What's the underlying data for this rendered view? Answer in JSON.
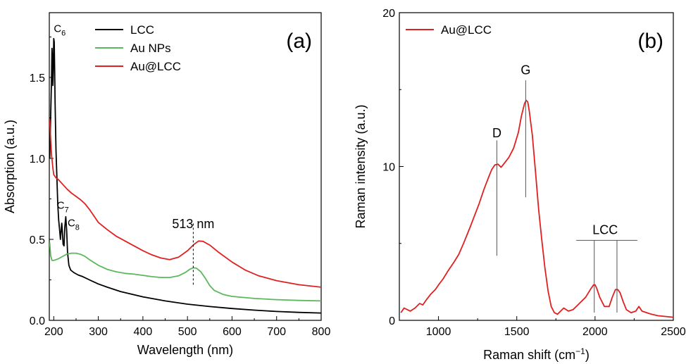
{
  "chart_data": [
    {
      "type": "line",
      "panel_label": "(a)",
      "xlabel": "Wavelength (nm)",
      "ylabel": "Absorption (a.u.)",
      "xlim": [
        190,
        800
      ],
      "ylim": [
        0.0,
        1.9
      ],
      "xticks": [
        200,
        300,
        400,
        500,
        600,
        700,
        800
      ],
      "yticks": [
        0.0,
        0.5,
        1.0,
        1.5
      ],
      "xtick_labels": [
        "200",
        "300",
        "400",
        "500",
        "600",
        "700",
        "800"
      ],
      "ytick_labels": [
        "0.0",
        "0.5",
        "1.0",
        "1.5"
      ],
      "legend_position": "top-center",
      "series": [
        {
          "name": "LCC",
          "color": "#000000",
          "points": [
            [
              191,
              1.0
            ],
            [
              193,
              1.25
            ],
            [
              195,
              1.5
            ],
            [
              196,
              1.68
            ],
            [
              197,
              1.62
            ],
            [
              198,
              1.45
            ],
            [
              199,
              1.55
            ],
            [
              200,
              1.74
            ],
            [
              201,
              1.72
            ],
            [
              202,
              1.55
            ],
            [
              203,
              1.35
            ],
            [
              205,
              1.05
            ],
            [
              207,
              0.88
            ],
            [
              209,
              0.72
            ],
            [
              211,
              0.62
            ],
            [
              213,
              0.56
            ],
            [
              215,
              0.5
            ],
            [
              217,
              0.57
            ],
            [
              218,
              0.6
            ],
            [
              219,
              0.56
            ],
            [
              221,
              0.47
            ],
            [
              223,
              0.46
            ],
            [
              225,
              0.58
            ],
            [
              227,
              0.64
            ],
            [
              229,
              0.55
            ],
            [
              231,
              0.42
            ],
            [
              234,
              0.34
            ],
            [
              238,
              0.31
            ],
            [
              245,
              0.295
            ],
            [
              255,
              0.28
            ],
            [
              265,
              0.27
            ],
            [
              280,
              0.25
            ],
            [
              300,
              0.225
            ],
            [
              320,
              0.205
            ],
            [
              350,
              0.178
            ],
            [
              400,
              0.145
            ],
            [
              450,
              0.12
            ],
            [
              500,
              0.1
            ],
            [
              550,
              0.085
            ],
            [
              600,
              0.073
            ],
            [
              650,
              0.063
            ],
            [
              700,
              0.055
            ],
            [
              750,
              0.049
            ],
            [
              800,
              0.045
            ]
          ]
        },
        {
          "name": "Au NPs",
          "color": "#5cb85c",
          "points": [
            [
              191,
              0.48
            ],
            [
              193,
              0.4
            ],
            [
              196,
              0.37
            ],
            [
              200,
              0.37
            ],
            [
              205,
              0.375
            ],
            [
              210,
              0.38
            ],
            [
              220,
              0.395
            ],
            [
              230,
              0.41
            ],
            [
              240,
              0.415
            ],
            [
              250,
              0.415
            ],
            [
              260,
              0.408
            ],
            [
              270,
              0.395
            ],
            [
              280,
              0.375
            ],
            [
              300,
              0.34
            ],
            [
              320,
              0.315
            ],
            [
              340,
              0.3
            ],
            [
              360,
              0.29
            ],
            [
              380,
              0.285
            ],
            [
              400,
              0.278
            ],
            [
              420,
              0.27
            ],
            [
              440,
              0.265
            ],
            [
              460,
              0.265
            ],
            [
              480,
              0.275
            ],
            [
              495,
              0.295
            ],
            [
              505,
              0.315
            ],
            [
              513,
              0.325
            ],
            [
              520,
              0.322
            ],
            [
              530,
              0.3
            ],
            [
              540,
              0.26
            ],
            [
              550,
              0.215
            ],
            [
              560,
              0.185
            ],
            [
              580,
              0.16
            ],
            [
              600,
              0.148
            ],
            [
              650,
              0.135
            ],
            [
              700,
              0.128
            ],
            [
              750,
              0.123
            ],
            [
              800,
              0.12
            ]
          ]
        },
        {
          "name": "Au@LCC",
          "color": "#e02020",
          "points": [
            [
              191,
              1.24
            ],
            [
              193,
              1.12
            ],
            [
              195,
              1.02
            ],
            [
              198,
              0.94
            ],
            [
              200,
              0.9
            ],
            [
              205,
              0.88
            ],
            [
              210,
              0.87
            ],
            [
              220,
              0.84
            ],
            [
              230,
              0.81
            ],
            [
              240,
              0.785
            ],
            [
              250,
              0.765
            ],
            [
              260,
              0.745
            ],
            [
              270,
              0.72
            ],
            [
              280,
              0.685
            ],
            [
              290,
              0.645
            ],
            [
              300,
              0.605
            ],
            [
              320,
              0.56
            ],
            [
              340,
              0.52
            ],
            [
              360,
              0.49
            ],
            [
              380,
              0.46
            ],
            [
              400,
              0.43
            ],
            [
              420,
              0.405
            ],
            [
              440,
              0.385
            ],
            [
              460,
              0.375
            ],
            [
              480,
              0.39
            ],
            [
              500,
              0.43
            ],
            [
              515,
              0.47
            ],
            [
              525,
              0.49
            ],
            [
              535,
              0.488
            ],
            [
              550,
              0.465
            ],
            [
              570,
              0.42
            ],
            [
              600,
              0.36
            ],
            [
              630,
              0.31
            ],
            [
              660,
              0.275
            ],
            [
              700,
              0.245
            ],
            [
              750,
              0.22
            ],
            [
              800,
              0.205
            ]
          ]
        }
      ],
      "annotations": [
        {
          "text": "C",
          "sub": "6",
          "x": 200,
          "y": 1.78
        },
        {
          "text": "C",
          "sub": "7",
          "x": 207,
          "y": 0.69
        },
        {
          "text": "C",
          "sub": "8",
          "x": 231,
          "y": 0.58
        },
        {
          "text": "513 nm",
          "x": 513,
          "y": 0.57
        }
      ],
      "marker_line": {
        "x": 513,
        "y_from": 0.22,
        "y_to": 0.6
      }
    },
    {
      "type": "line",
      "panel_label": "(b)",
      "xlabel": "Raman shift (cm",
      "xlabel_sup": "−1",
      "xlabel_close": ")",
      "ylabel": "Raman intensity (a.u.)",
      "xlim": [
        750,
        2500
      ],
      "ylim": [
        0,
        20
      ],
      "xticks": [
        1000,
        1500,
        2000,
        2500
      ],
      "yticks": [
        0,
        10,
        20
      ],
      "xtick_labels": [
        "1000",
        "1500",
        "2000",
        "2500"
      ],
      "ytick_labels": [
        "0",
        "10",
        "20"
      ],
      "legend_position": "top-left",
      "series": [
        {
          "name": "Au@LCC",
          "color": "#e02020",
          "points": [
            [
              760,
              0.5
            ],
            [
              780,
              0.8
            ],
            [
              800,
              0.7
            ],
            [
              820,
              0.6
            ],
            [
              850,
              0.8
            ],
            [
              880,
              1.1
            ],
            [
              900,
              1.0
            ],
            [
              920,
              1.3
            ],
            [
              950,
              1.7
            ],
            [
              980,
              2.0
            ],
            [
              1000,
              2.3
            ],
            [
              1030,
              2.7
            ],
            [
              1060,
              3.2
            ],
            [
              1100,
              3.8
            ],
            [
              1130,
              4.3
            ],
            [
              1160,
              5.0
            ],
            [
              1200,
              6.0
            ],
            [
              1230,
              6.8
            ],
            [
              1260,
              7.6
            ],
            [
              1290,
              8.5
            ],
            [
              1320,
              9.3
            ],
            [
              1340,
              9.8
            ],
            [
              1360,
              10.1
            ],
            [
              1380,
              10.15
            ],
            [
              1400,
              9.95
            ],
            [
              1420,
              10.2
            ],
            [
              1450,
              10.6
            ],
            [
              1480,
              11.2
            ],
            [
              1510,
              12.2
            ],
            [
              1530,
              13.3
            ],
            [
              1550,
              14.1
            ],
            [
              1560,
              14.3
            ],
            [
              1570,
              14.2
            ],
            [
              1580,
              13.6
            ],
            [
              1600,
              12.0
            ],
            [
              1620,
              9.6
            ],
            [
              1640,
              7.2
            ],
            [
              1660,
              5.2
            ],
            [
              1680,
              3.4
            ],
            [
              1700,
              1.9
            ],
            [
              1720,
              0.9
            ],
            [
              1740,
              0.5
            ],
            [
              1760,
              0.4
            ],
            [
              1780,
              0.6
            ],
            [
              1800,
              0.8
            ],
            [
              1830,
              0.6
            ],
            [
              1860,
              0.7
            ],
            [
              1900,
              1.1
            ],
            [
              1940,
              1.5
            ],
            [
              1970,
              2.0
            ],
            [
              1990,
              2.3
            ],
            [
              2000,
              2.3
            ],
            [
              2010,
              2.1
            ],
            [
              2030,
              1.5
            ],
            [
              2060,
              0.9
            ],
            [
              2090,
              0.9
            ],
            [
              2110,
              1.5
            ],
            [
              2130,
              2.0
            ],
            [
              2145,
              2.0
            ],
            [
              2160,
              1.8
            ],
            [
              2180,
              1.2
            ],
            [
              2200,
              0.7
            ],
            [
              2230,
              0.5
            ],
            [
              2260,
              0.6
            ],
            [
              2280,
              0.9
            ],
            [
              2300,
              0.6
            ],
            [
              2330,
              0.5
            ],
            [
              2360,
              0.4
            ],
            [
              2400,
              0.3
            ],
            [
              2450,
              0.25
            ],
            [
              2500,
              0.2
            ]
          ]
        }
      ],
      "annotations": [
        {
          "text": "D",
          "x": 1373,
          "y": 11.9
        },
        {
          "text": "G",
          "x": 1557,
          "y": 16.0
        },
        {
          "text": "LCC",
          "x": 2065,
          "y": 5.6
        }
      ],
      "marker_lines": [
        {
          "x": 1373,
          "y_from": 4.2,
          "y_to": 11.7
        },
        {
          "x": 1557,
          "y_from": 8.0,
          "y_to": 15.6
        },
        {
          "x": 1995,
          "y_from": 0.5,
          "y_to": 5.2
        },
        {
          "x": 2140,
          "y_from": 0.5,
          "y_to": 5.2
        }
      ],
      "bracket": {
        "x_from": 1880,
        "x_to": 2270,
        "y": 5.2
      }
    }
  ]
}
